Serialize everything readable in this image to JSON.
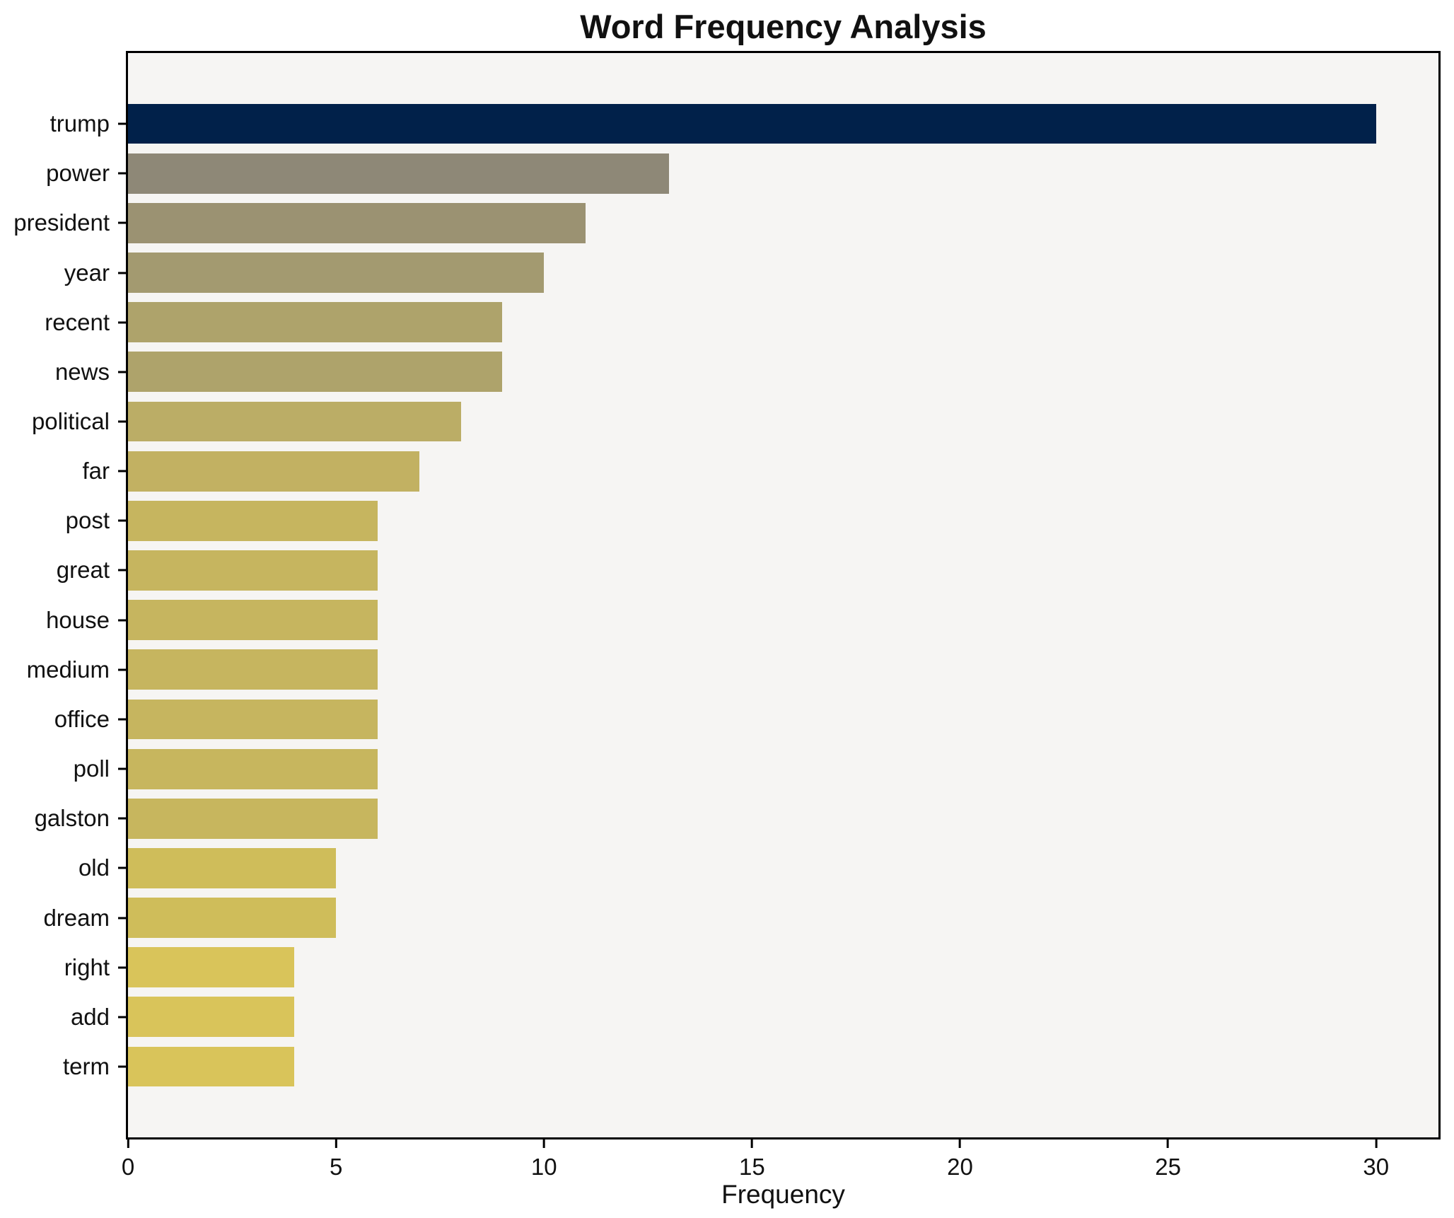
{
  "chart_data": {
    "type": "bar",
    "orientation": "horizontal",
    "title": "Word Frequency Analysis",
    "xlabel": "Frequency",
    "ylabel": "",
    "categories": [
      "trump",
      "power",
      "president",
      "year",
      "recent",
      "news",
      "political",
      "far",
      "post",
      "great",
      "house",
      "medium",
      "office",
      "poll",
      "galston",
      "old",
      "dream",
      "right",
      "add",
      "term"
    ],
    "values": [
      30,
      13,
      11,
      10,
      9,
      9,
      8,
      7,
      6,
      6,
      6,
      6,
      6,
      6,
      6,
      5,
      5,
      4,
      4,
      4
    ],
    "bar_colors": [
      "#01214a",
      "#8e8877",
      "#9b9272",
      "#a39a70",
      "#aea36b",
      "#aea36b",
      "#bbad66",
      "#c2b162",
      "#c6b55f",
      "#c6b55f",
      "#c6b55f",
      "#c6b55f",
      "#c6b55f",
      "#c7b65e",
      "#c7b65e",
      "#cfbd5a",
      "#cfbd5a",
      "#d9c45a",
      "#d9c45a",
      "#d9c45a"
    ],
    "xlim": [
      0,
      31.5
    ],
    "xticks": [
      0,
      5,
      10,
      15,
      20,
      25,
      30
    ],
    "grid": false,
    "legend": "none",
    "plot_bg": "#f6f5f3",
    "fig_bg": "#ffffff",
    "spine_color": "#000000"
  }
}
